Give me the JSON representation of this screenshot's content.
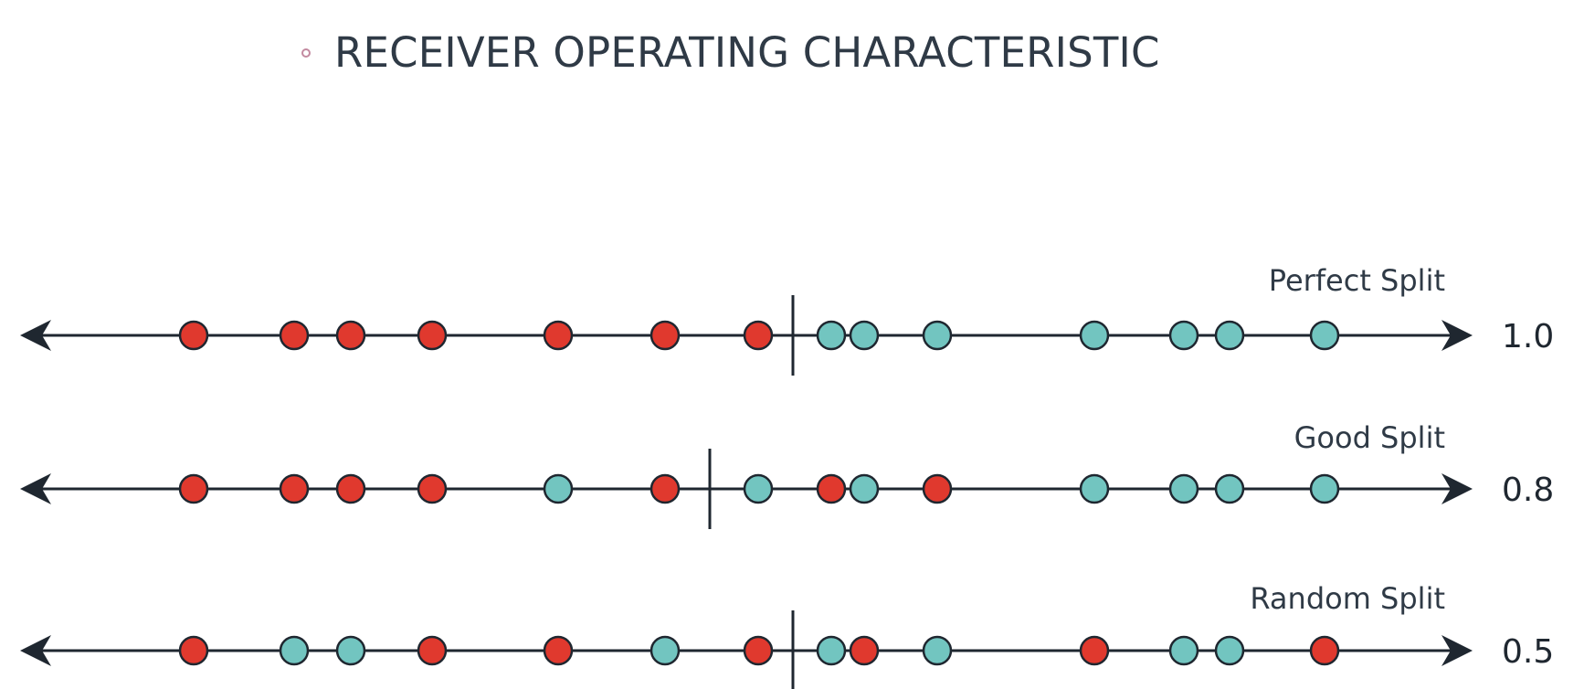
{
  "slide": {
    "title": "RECEIVER OPERATING CHARACTERISTIC"
  },
  "colors": {
    "negative": "#e0392e",
    "positive": "#72c5c0",
    "outline": "#1f2730",
    "axis": "#1f2730"
  },
  "rows": [
    {
      "label": "Perfect Split",
      "score": "1.0",
      "threshold_after_index": 6,
      "points": [
        "red",
        "red",
        "red",
        "red",
        "red",
        "red",
        "red",
        "teal",
        "teal",
        "teal",
        "teal",
        "teal",
        "teal",
        "teal"
      ]
    },
    {
      "label": "Good Split",
      "score": "0.8",
      "threshold_after_index": 5,
      "points": [
        "red",
        "red",
        "red",
        "red",
        "teal",
        "red",
        "teal",
        "red",
        "teal",
        "red",
        "teal",
        "teal",
        "teal",
        "teal"
      ]
    },
    {
      "label": "Random Split",
      "score": "0.5",
      "threshold_after_index": 6,
      "points": [
        "red",
        "teal",
        "teal",
        "red",
        "red",
        "teal",
        "red",
        "teal",
        "red",
        "teal",
        "red",
        "teal",
        "teal",
        "red"
      ]
    }
  ]
}
